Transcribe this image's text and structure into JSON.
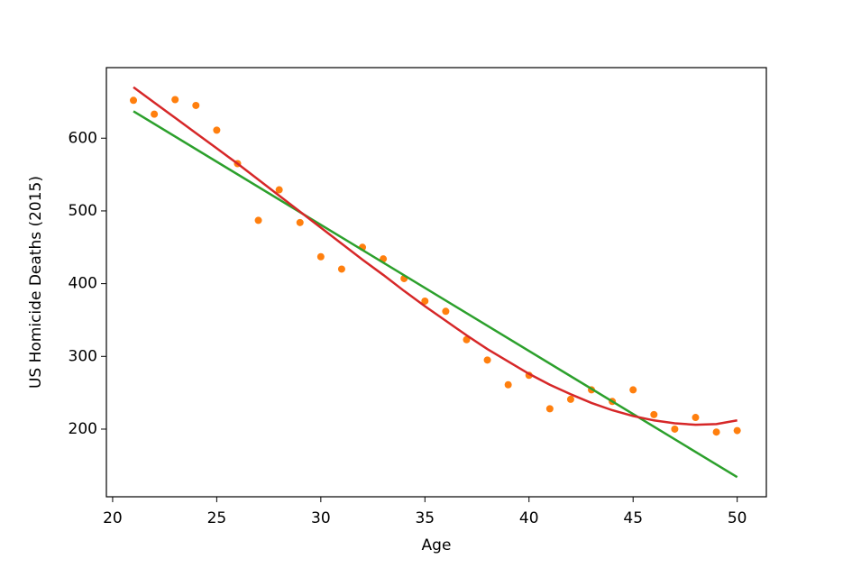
{
  "chart_data": {
    "type": "scatter",
    "x_label": "Age",
    "y_label": "US Homicide Deaths (2015)",
    "xlim": [
      19.7,
      51.4
    ],
    "ylim": [
      107,
      697
    ],
    "xticks": [
      20,
      25,
      30,
      35,
      40,
      45,
      50
    ],
    "yticks": [
      200,
      300,
      400,
      500,
      600
    ],
    "series": [
      {
        "type": "scatter",
        "color": "#ff7f0e",
        "x": [
          21,
          22,
          23,
          24,
          25,
          26,
          27,
          28,
          29,
          30,
          31,
          32,
          33,
          34,
          35,
          36,
          37,
          38,
          39,
          40,
          41,
          42,
          43,
          44,
          45,
          46,
          47,
          48,
          49,
          50
        ],
        "values": [
          652,
          633,
          653,
          645,
          611,
          565,
          487,
          529,
          484,
          437,
          420,
          450,
          434,
          407,
          376,
          362,
          323,
          295,
          261,
          274,
          228,
          241,
          254,
          238,
          254,
          220,
          200,
          216,
          196,
          198
        ]
      },
      {
        "type": "line",
        "color": "#2ca02c",
        "x": [
          21,
          50
        ],
        "values": [
          637,
          134
        ]
      },
      {
        "type": "line",
        "color": "#d62728",
        "x": [
          21,
          22,
          23,
          24,
          25,
          26,
          27,
          28,
          29,
          30,
          31,
          32,
          33,
          34,
          35,
          36,
          37,
          38,
          39,
          40,
          41,
          42,
          43,
          44,
          45,
          46,
          47,
          48,
          49,
          50
        ],
        "values": [
          670,
          649,
          628,
          607,
          586,
          565,
          543,
          521,
          499,
          477,
          455,
          433,
          412,
          390,
          369,
          349,
          329,
          310,
          293,
          276,
          261,
          248,
          236,
          226,
          218,
          212,
          208,
          206,
          207,
          212
        ]
      }
    ]
  }
}
